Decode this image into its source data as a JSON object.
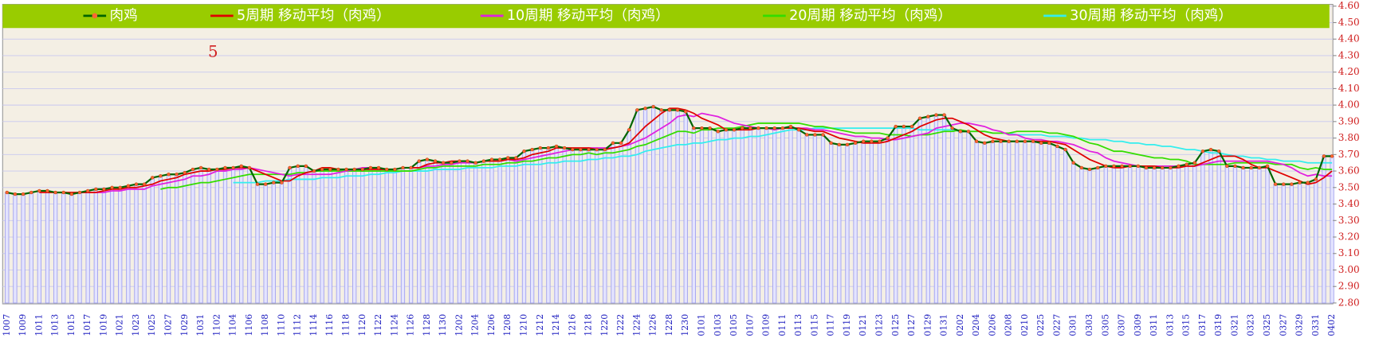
{
  "chart_data": {
    "type": "line",
    "annotation": "5",
    "categories": [
      "1007",
      null,
      "1009",
      null,
      "1011",
      null,
      "1013",
      null,
      "1015",
      null,
      "1017",
      null,
      "1019",
      null,
      "1021",
      null,
      "1023",
      null,
      "1025",
      null,
      "1027",
      null,
      "1029",
      null,
      "1031",
      null,
      "1102",
      null,
      "1104",
      null,
      "1106",
      null,
      "1108",
      null,
      "1110",
      null,
      "1112",
      null,
      "1114",
      null,
      "1116",
      null,
      "1118",
      null,
      "1120",
      null,
      "1122",
      null,
      "1124",
      null,
      "1126",
      null,
      "1128",
      null,
      "1130",
      null,
      "1202",
      null,
      "1204",
      null,
      "1206",
      null,
      "1208",
      null,
      "1210",
      null,
      "1212",
      null,
      "1214",
      null,
      "1216",
      null,
      "1218",
      null,
      "1220",
      null,
      "1222",
      null,
      "1224",
      null,
      "1226",
      null,
      "1228",
      null,
      "1230",
      null,
      "0101",
      null,
      "0103",
      null,
      "0105",
      null,
      "0107",
      null,
      "0109",
      null,
      "0111",
      null,
      "0113",
      null,
      "0115",
      null,
      "0117",
      null,
      "0119",
      null,
      "0121",
      null,
      "0123",
      null,
      "0125",
      null,
      "0127",
      null,
      "0129",
      null,
      "0131",
      null,
      "0202",
      null,
      "0204",
      null,
      "0206",
      null,
      "0208",
      null,
      "0210",
      null,
      "0225",
      null,
      "0227",
      null,
      "0301",
      null,
      "0303",
      null,
      "0305",
      null,
      "0307",
      null,
      "0309",
      null,
      "0311",
      null,
      "0313",
      null,
      "0315",
      null,
      "0317",
      null,
      "0319",
      null,
      "0321",
      null,
      "0323",
      null,
      "0325",
      null,
      "0327",
      null,
      "0329",
      null,
      "0331",
      null,
      "0402"
    ],
    "series": [
      {
        "name": "肉鸡",
        "color": "#006400",
        "marker": "#ff6633",
        "values": [
          3.47,
          3.46,
          3.46,
          3.47,
          3.48,
          3.48,
          3.47,
          3.47,
          3.46,
          3.47,
          3.48,
          3.49,
          3.49,
          3.5,
          3.5,
          3.51,
          3.52,
          3.52,
          3.56,
          3.57,
          3.58,
          3.58,
          3.59,
          3.61,
          3.62,
          3.61,
          3.61,
          3.62,
          3.62,
          3.63,
          3.62,
          3.52,
          3.52,
          3.53,
          3.53,
          3.62,
          3.63,
          3.63,
          3.6,
          3.61,
          3.61,
          3.61,
          3.61,
          3.61,
          3.61,
          3.62,
          3.62,
          3.61,
          3.61,
          3.62,
          3.62,
          3.66,
          3.67,
          3.66,
          3.65,
          3.65,
          3.66,
          3.66,
          3.65,
          3.66,
          3.67,
          3.67,
          3.68,
          3.68,
          3.72,
          3.73,
          3.74,
          3.74,
          3.75,
          3.74,
          3.73,
          3.73,
          3.73,
          3.73,
          3.73,
          3.77,
          3.77,
          3.85,
          3.97,
          3.98,
          3.99,
          3.97,
          3.97,
          3.97,
          3.96,
          3.86,
          3.86,
          3.86,
          3.84,
          3.85,
          3.85,
          3.86,
          3.86,
          3.86,
          3.86,
          3.86,
          3.86,
          3.87,
          3.85,
          3.82,
          3.82,
          3.82,
          3.77,
          3.76,
          3.76,
          3.77,
          3.78,
          3.78,
          3.78,
          3.8,
          3.87,
          3.87,
          3.87,
          3.92,
          3.93,
          3.94,
          3.94,
          3.86,
          3.84,
          3.84,
          3.78,
          3.77,
          3.78,
          3.78,
          3.78,
          3.78,
          3.78,
          3.78,
          3.77,
          3.77,
          3.75,
          3.73,
          3.65,
          3.62,
          3.61,
          3.62,
          3.63,
          3.63,
          3.63,
          3.63,
          3.63,
          3.62,
          3.62,
          3.62,
          3.62,
          3.63,
          3.64,
          3.65,
          3.72,
          3.73,
          3.72,
          3.63,
          3.63,
          3.62,
          3.62,
          3.62,
          3.63,
          3.52,
          3.52,
          3.52,
          3.53,
          3.53,
          3.55,
          3.69,
          3.69
        ]
      },
      {
        "name": "5周期 移动平均（肉鸡）",
        "color": "#e00000",
        "values": [
          null,
          null,
          null,
          null,
          3.47,
          3.47,
          3.47,
          3.47,
          3.47,
          3.47,
          3.47,
          3.47,
          3.48,
          3.49,
          3.49,
          3.5,
          3.5,
          3.51,
          3.52,
          3.54,
          3.55,
          3.56,
          3.58,
          3.59,
          3.6,
          3.6,
          3.61,
          3.61,
          3.62,
          3.62,
          3.62,
          3.6,
          3.58,
          3.56,
          3.54,
          3.54,
          3.57,
          3.59,
          3.6,
          3.62,
          3.62,
          3.61,
          3.61,
          3.61,
          3.61,
          3.61,
          3.61,
          3.61,
          3.61,
          3.62,
          3.62,
          3.62,
          3.64,
          3.65,
          3.65,
          3.66,
          3.66,
          3.66,
          3.65,
          3.66,
          3.66,
          3.66,
          3.67,
          3.67,
          3.68,
          3.7,
          3.71,
          3.72,
          3.74,
          3.74,
          3.74,
          3.74,
          3.74,
          3.73,
          3.73,
          3.74,
          3.75,
          3.77,
          3.82,
          3.87,
          3.91,
          3.95,
          3.98,
          3.98,
          3.97,
          3.95,
          3.92,
          3.9,
          3.88,
          3.85,
          3.85,
          3.85,
          3.85,
          3.86,
          3.86,
          3.86,
          3.86,
          3.86,
          3.86,
          3.85,
          3.84,
          3.84,
          3.82,
          3.8,
          3.79,
          3.78,
          3.77,
          3.77,
          3.77,
          3.78,
          3.8,
          3.82,
          3.84,
          3.87,
          3.89,
          3.91,
          3.92,
          3.92,
          3.9,
          3.88,
          3.85,
          3.82,
          3.8,
          3.79,
          3.78,
          3.78,
          3.78,
          3.78,
          3.78,
          3.78,
          3.77,
          3.76,
          3.73,
          3.7,
          3.67,
          3.65,
          3.63,
          3.62,
          3.62,
          3.63,
          3.63,
          3.63,
          3.63,
          3.62,
          3.62,
          3.62,
          3.63,
          3.63,
          3.65,
          3.67,
          3.69,
          3.69,
          3.69,
          3.67,
          3.64,
          3.62,
          3.62,
          3.6,
          3.58,
          3.56,
          3.54,
          3.52,
          3.53,
          3.56,
          3.6
        ]
      },
      {
        "name": "10周期 移动平均（肉鸡）",
        "color": "#e020e0",
        "values": [
          null,
          null,
          null,
          null,
          null,
          null,
          null,
          null,
          null,
          3.47,
          3.47,
          3.47,
          3.47,
          3.48,
          3.48,
          3.49,
          3.49,
          3.49,
          3.51,
          3.52,
          3.53,
          3.54,
          3.55,
          3.57,
          3.57,
          3.58,
          3.6,
          3.6,
          3.61,
          3.61,
          3.62,
          3.61,
          3.6,
          3.59,
          3.58,
          3.57,
          3.58,
          3.58,
          3.58,
          3.58,
          3.58,
          3.59,
          3.6,
          3.61,
          3.62,
          3.62,
          3.61,
          3.61,
          3.61,
          3.62,
          3.62,
          3.62,
          3.63,
          3.63,
          3.64,
          3.64,
          3.65,
          3.65,
          3.65,
          3.66,
          3.66,
          3.66,
          3.67,
          3.66,
          3.67,
          3.68,
          3.69,
          3.7,
          3.71,
          3.72,
          3.73,
          3.73,
          3.74,
          3.74,
          3.74,
          3.74,
          3.75,
          3.76,
          3.78,
          3.8,
          3.83,
          3.86,
          3.89,
          3.93,
          3.94,
          3.93,
          3.95,
          3.94,
          3.93,
          3.91,
          3.89,
          3.88,
          3.87,
          3.86,
          3.86,
          3.85,
          3.86,
          3.86,
          3.86,
          3.86,
          3.85,
          3.85,
          3.84,
          3.83,
          3.82,
          3.81,
          3.81,
          3.8,
          3.8,
          3.79,
          3.79,
          3.8,
          3.81,
          3.82,
          3.83,
          3.86,
          3.87,
          3.88,
          3.89,
          3.89,
          3.88,
          3.87,
          3.85,
          3.84,
          3.82,
          3.82,
          3.8,
          3.79,
          3.79,
          3.78,
          3.78,
          3.77,
          3.76,
          3.74,
          3.72,
          3.71,
          3.68,
          3.66,
          3.65,
          3.64,
          3.63,
          3.63,
          3.63,
          3.63,
          3.63,
          3.63,
          3.63,
          3.63,
          3.64,
          3.65,
          3.66,
          3.66,
          3.66,
          3.66,
          3.66,
          3.66,
          3.66,
          3.65,
          3.64,
          3.62,
          3.59,
          3.57,
          3.58,
          3.57,
          3.57
        ]
      },
      {
        "name": "20周期 移动平均（肉鸡）",
        "color": "#33dd00",
        "values": [
          null,
          null,
          null,
          null,
          null,
          null,
          null,
          null,
          null,
          null,
          null,
          null,
          null,
          null,
          null,
          null,
          null,
          null,
          null,
          3.49,
          3.5,
          3.5,
          3.51,
          3.52,
          3.53,
          3.53,
          3.54,
          3.55,
          3.56,
          3.57,
          3.58,
          3.58,
          3.58,
          3.58,
          3.58,
          3.58,
          3.59,
          3.59,
          3.6,
          3.6,
          3.6,
          3.6,
          3.6,
          3.6,
          3.6,
          3.6,
          3.6,
          3.6,
          3.6,
          3.6,
          3.6,
          3.61,
          3.62,
          3.62,
          3.63,
          3.63,
          3.63,
          3.63,
          3.63,
          3.64,
          3.64,
          3.64,
          3.65,
          3.65,
          3.66,
          3.66,
          3.67,
          3.68,
          3.68,
          3.69,
          3.7,
          3.7,
          3.71,
          3.7,
          3.71,
          3.71,
          3.72,
          3.73,
          3.75,
          3.76,
          3.78,
          3.8,
          3.82,
          3.84,
          3.84,
          3.83,
          3.85,
          3.85,
          3.86,
          3.86,
          3.86,
          3.87,
          3.88,
          3.89,
          3.89,
          3.89,
          3.89,
          3.89,
          3.89,
          3.88,
          3.87,
          3.87,
          3.86,
          3.85,
          3.84,
          3.83,
          3.83,
          3.83,
          3.83,
          3.82,
          3.82,
          3.82,
          3.81,
          3.82,
          3.82,
          3.83,
          3.84,
          3.84,
          3.85,
          3.84,
          3.84,
          3.84,
          3.83,
          3.83,
          3.83,
          3.84,
          3.84,
          3.84,
          3.84,
          3.83,
          3.83,
          3.82,
          3.81,
          3.79,
          3.77,
          3.76,
          3.74,
          3.72,
          3.72,
          3.71,
          3.7,
          3.69,
          3.68,
          3.68,
          3.67,
          3.67,
          3.66,
          3.64,
          3.64,
          3.64,
          3.64,
          3.64,
          3.65,
          3.65,
          3.65,
          3.65,
          3.65,
          3.64,
          3.64,
          3.64,
          3.62,
          3.61,
          3.62,
          3.61,
          3.61
        ]
      },
      {
        "name": "30周期 移动平均（肉鸡）",
        "color": "#33eeee",
        "values": [
          null,
          null,
          null,
          null,
          null,
          null,
          null,
          null,
          null,
          null,
          null,
          null,
          null,
          null,
          null,
          null,
          null,
          null,
          null,
          null,
          null,
          null,
          null,
          null,
          null,
          null,
          null,
          null,
          3.53,
          3.53,
          3.53,
          3.53,
          3.54,
          3.54,
          3.54,
          3.55,
          3.55,
          3.55,
          3.55,
          3.56,
          3.56,
          3.56,
          3.57,
          3.57,
          3.57,
          3.58,
          3.58,
          3.59,
          3.59,
          3.6,
          3.6,
          3.6,
          3.6,
          3.61,
          3.61,
          3.61,
          3.61,
          3.62,
          3.62,
          3.62,
          3.62,
          3.63,
          3.63,
          3.63,
          3.64,
          3.64,
          3.64,
          3.65,
          3.65,
          3.66,
          3.66,
          3.66,
          3.67,
          3.67,
          3.68,
          3.68,
          3.69,
          3.69,
          3.7,
          3.72,
          3.73,
          3.74,
          3.75,
          3.76,
          3.76,
          3.77,
          3.77,
          3.78,
          3.79,
          3.79,
          3.8,
          3.8,
          3.81,
          3.81,
          3.82,
          3.83,
          3.84,
          3.85,
          3.85,
          3.85,
          3.86,
          3.86,
          3.86,
          3.86,
          3.86,
          3.86,
          3.86,
          3.86,
          3.86,
          3.86,
          3.86,
          3.86,
          3.86,
          3.85,
          3.85,
          3.85,
          3.85,
          3.85,
          3.84,
          3.84,
          3.84,
          3.84,
          3.83,
          3.83,
          3.83,
          3.82,
          3.82,
          3.82,
          3.82,
          3.81,
          3.81,
          3.81,
          3.8,
          3.8,
          3.79,
          3.79,
          3.79,
          3.78,
          3.78,
          3.77,
          3.77,
          3.76,
          3.76,
          3.75,
          3.75,
          3.74,
          3.73,
          3.73,
          3.72,
          3.71,
          3.71,
          3.7,
          3.69,
          3.69,
          3.68,
          3.68,
          3.67,
          3.67,
          3.66,
          3.66,
          3.66,
          3.65,
          3.65,
          3.65,
          3.65
        ]
      }
    ],
    "ylim": [
      2.8,
      4.6
    ],
    "yticks": [
      {
        "value": 2.8,
        "label": "2.80"
      },
      {
        "value": 2.9,
        "label": "2.90"
      },
      {
        "value": 3,
        "label": "3.00"
      },
      {
        "value": 3.1,
        "label": "3.10"
      },
      {
        "value": 3.2,
        "label": "3.20"
      },
      {
        "value": 3.3,
        "label": "3.30"
      },
      {
        "value": 3.4,
        "label": "3.40"
      },
      {
        "value": 3.5,
        "label": "3.50"
      },
      {
        "value": 3.6,
        "label": "3.60"
      },
      {
        "value": 3.7,
        "label": "3.70"
      },
      {
        "value": 3.8,
        "label": "3.80"
      },
      {
        "value": 3.9,
        "label": "3.90"
      },
      {
        "value": 4,
        "label": "4.00"
      },
      {
        "value": 4.1,
        "label": "4.10"
      },
      {
        "value": 4.2,
        "label": "4.20"
      },
      {
        "value": 4.3,
        "label": "4.30"
      },
      {
        "value": 4.4,
        "label": "4.40"
      },
      {
        "value": 4.5,
        "label": "4.50"
      },
      {
        "value": 4.6,
        "label": "4.60"
      }
    ],
    "grid": true,
    "bars_color": "#e4e4ff",
    "legend_color": "#99cc00"
  }
}
